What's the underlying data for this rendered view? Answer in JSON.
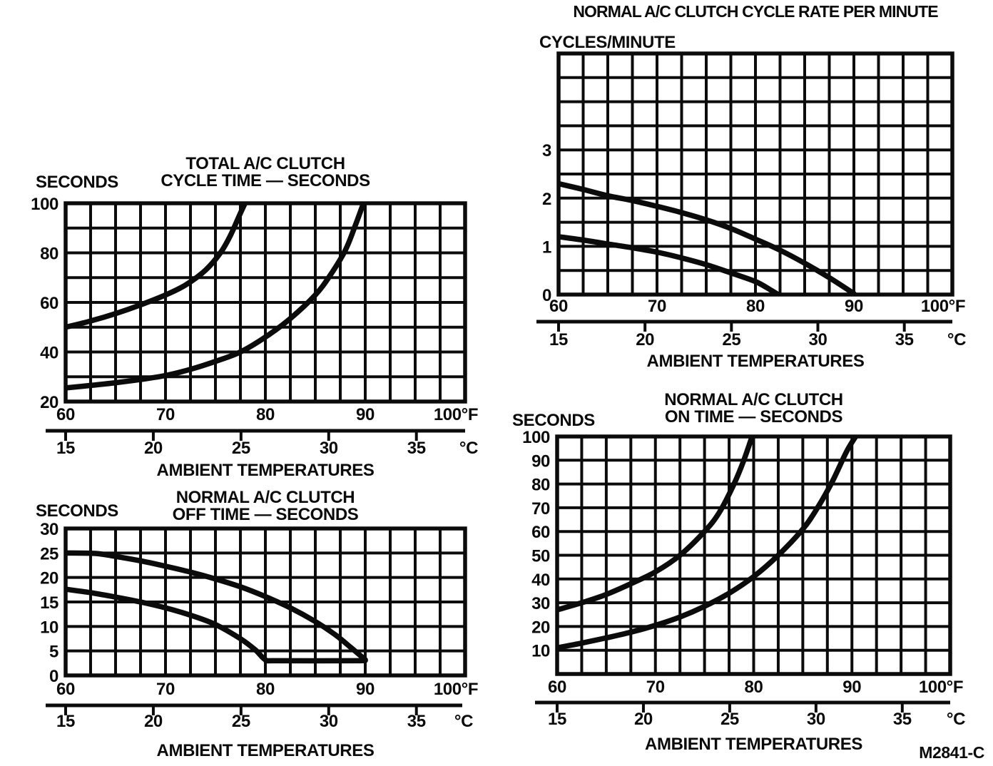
{
  "page": {
    "figure_code": "M2841-C"
  },
  "chart_data": [
    {
      "id": "cycle-time",
      "type": "line",
      "title_lines": [
        "TOTAL A/C CLUTCH",
        "CYCLE TIME — SECONDS"
      ],
      "y_unit_label": "SECONDS",
      "x_axis_label": "AMBIENT TEMPERATURES",
      "x_f": {
        "range": [
          60,
          100
        ],
        "grid_step": 2.5,
        "ticks": [
          {
            "v": 60,
            "label": "60"
          },
          {
            "v": 70,
            "label": "70"
          },
          {
            "v": 80,
            "label": "80"
          },
          {
            "v": 90,
            "label": "90"
          },
          {
            "v": 100,
            "label": "100°F"
          }
        ]
      },
      "c_axis": {
        "values": [
          15,
          20,
          25,
          30,
          35
        ],
        "unit": "°C"
      },
      "y": {
        "range": [
          20,
          100
        ],
        "grid_step": 10,
        "ticks": [
          {
            "v": 20,
            "label": "20"
          },
          {
            "v": 40,
            "label": "40"
          },
          {
            "v": 60,
            "label": "60"
          },
          {
            "v": 80,
            "label": "80"
          },
          {
            "v": 100,
            "label": "100"
          }
        ]
      },
      "series": [
        {
          "name": "upper",
          "points": [
            [
              60,
              50
            ],
            [
              62.5,
              52.5
            ],
            [
              65,
              55.5
            ],
            [
              67.5,
              59
            ],
            [
              70,
              63
            ],
            [
              72,
              67
            ],
            [
              74,
              73
            ],
            [
              75.5,
              80
            ],
            [
              76.5,
              87
            ],
            [
              77.5,
              96
            ],
            [
              78.2,
              102
            ]
          ]
        },
        {
          "name": "lower",
          "points": [
            [
              60,
              25.5
            ],
            [
              62.5,
              26.5
            ],
            [
              65,
              27.6
            ],
            [
              67.5,
              28.9
            ],
            [
              70,
              30.5
            ],
            [
              72.5,
              33
            ],
            [
              75,
              36.2
            ],
            [
              77.5,
              40
            ],
            [
              80,
              46
            ],
            [
              82.5,
              53.5
            ],
            [
              85,
              63
            ],
            [
              86.5,
              71
            ],
            [
              88,
              81
            ],
            [
              89,
              91
            ],
            [
              90,
              102
            ]
          ]
        }
      ]
    },
    {
      "id": "cycle-rate",
      "type": "line",
      "title_lines": [
        "NORMAL A/C CLUTCH CYCLE RATE PER MINUTE"
      ],
      "y_unit_label": "CYCLES/MINUTE",
      "x_axis_label": "AMBIENT TEMPERATURES",
      "x_f": {
        "range": [
          60,
          100
        ],
        "grid_step": 2.5,
        "ticks": [
          {
            "v": 60,
            "label": "60"
          },
          {
            "v": 70,
            "label": "70"
          },
          {
            "v": 80,
            "label": "80"
          },
          {
            "v": 90,
            "label": "90"
          },
          {
            "v": 100,
            "label": "100°F"
          }
        ]
      },
      "c_axis": {
        "values": [
          15,
          20,
          25,
          30,
          35
        ],
        "unit": "°C"
      },
      "y": {
        "range": [
          0,
          5
        ],
        "grid_step": 0.5,
        "ticks": [
          {
            "v": 0,
            "label": "0"
          },
          {
            "v": 1,
            "label": "1"
          },
          {
            "v": 2,
            "label": "2"
          },
          {
            "v": 3,
            "label": "3"
          }
        ]
      },
      "series": [
        {
          "name": "upper",
          "points": [
            [
              60,
              2.3
            ],
            [
              62.5,
              2.18
            ],
            [
              65,
              2.05
            ],
            [
              67.5,
              1.95
            ],
            [
              70,
              1.83
            ],
            [
              72.5,
              1.7
            ],
            [
              75,
              1.55
            ],
            [
              77.5,
              1.37
            ],
            [
              80,
              1.15
            ],
            [
              82.5,
              0.92
            ],
            [
              85,
              0.65
            ],
            [
              87.5,
              0.35
            ],
            [
              90,
              0.02
            ]
          ]
        },
        {
          "name": "lower",
          "points": [
            [
              60,
              1.2
            ],
            [
              62.5,
              1.13
            ],
            [
              65,
              1.05
            ],
            [
              67.5,
              0.97
            ],
            [
              70,
              0.88
            ],
            [
              72.5,
              0.76
            ],
            [
              75,
              0.62
            ],
            [
              77.5,
              0.45
            ],
            [
              80,
              0.27
            ],
            [
              81.5,
              0.1
            ],
            [
              82.3,
              0
            ]
          ]
        }
      ]
    },
    {
      "id": "off-time",
      "type": "line",
      "title_lines": [
        "NORMAL A/C CLUTCH",
        "OFF TIME — SECONDS"
      ],
      "y_unit_label": "SECONDS",
      "x_axis_label": "AMBIENT TEMPERATURES",
      "x_f": {
        "range": [
          60,
          100
        ],
        "grid_step": 2.5,
        "ticks": [
          {
            "v": 60,
            "label": "60"
          },
          {
            "v": 70,
            "label": "70"
          },
          {
            "v": 80,
            "label": "80"
          },
          {
            "v": 90,
            "label": "90"
          },
          {
            "v": 100,
            "label": "100°F"
          }
        ]
      },
      "c_axis": {
        "values": [
          15,
          20,
          25,
          30,
          35
        ],
        "unit": "°C"
      },
      "y": {
        "range": [
          0,
          30
        ],
        "grid_step": 5,
        "ticks": [
          {
            "v": 0,
            "label": "0"
          },
          {
            "v": 5,
            "label": "5"
          },
          {
            "v": 10,
            "label": "10"
          },
          {
            "v": 15,
            "label": "15"
          },
          {
            "v": 20,
            "label": "20"
          },
          {
            "v": 25,
            "label": "25"
          },
          {
            "v": 30,
            "label": "30"
          }
        ]
      },
      "series": [
        {
          "name": "upper",
          "points": [
            [
              60,
              25
            ],
            [
              63,
              24.9
            ],
            [
              65,
              24.3
            ],
            [
              67.5,
              23.4
            ],
            [
              70,
              22.3
            ],
            [
              72.5,
              21.1
            ],
            [
              75,
              19.7
            ],
            [
              77.5,
              18.1
            ],
            [
              80,
              16.1
            ],
            [
              82.5,
              13.8
            ],
            [
              85,
              11
            ],
            [
              87,
              8.3
            ],
            [
              88.5,
              5.8
            ],
            [
              90,
              3.2
            ]
          ]
        },
        {
          "name": "lower",
          "points": [
            [
              60,
              17.6
            ],
            [
              62.5,
              16.9
            ],
            [
              65,
              16
            ],
            [
              67.5,
              15
            ],
            [
              70,
              13.8
            ],
            [
              72.5,
              12.3
            ],
            [
              75,
              10.4
            ],
            [
              77.5,
              7.5
            ],
            [
              79,
              5.2
            ],
            [
              80,
              3.2
            ],
            [
              81,
              3
            ],
            [
              89,
              3
            ],
            [
              90,
              3.1
            ]
          ]
        }
      ]
    },
    {
      "id": "on-time",
      "type": "line",
      "title_lines": [
        "NORMAL A/C CLUTCH",
        "ON TIME — SECONDS"
      ],
      "y_unit_label": "SECONDS",
      "x_axis_label": "AMBIENT TEMPERATURES",
      "x_f": {
        "range": [
          60,
          100
        ],
        "grid_step": 2.5,
        "ticks": [
          {
            "v": 60,
            "label": "60"
          },
          {
            "v": 70,
            "label": "70"
          },
          {
            "v": 80,
            "label": "80"
          },
          {
            "v": 90,
            "label": "90"
          },
          {
            "v": 100,
            "label": "100°F"
          }
        ]
      },
      "c_axis": {
        "values": [
          15,
          20,
          25,
          30,
          35
        ],
        "unit": "°C"
      },
      "y": {
        "range": [
          0,
          100
        ],
        "grid_step": 10,
        "ticks": [
          {
            "v": 10,
            "label": "10"
          },
          {
            "v": 20,
            "label": "20"
          },
          {
            "v": 30,
            "label": "30"
          },
          {
            "v": 40,
            "label": "40"
          },
          {
            "v": 50,
            "label": "50"
          },
          {
            "v": 60,
            "label": "60"
          },
          {
            "v": 70,
            "label": "70"
          },
          {
            "v": 80,
            "label": "80"
          },
          {
            "v": 90,
            "label": "90"
          },
          {
            "v": 100,
            "label": "100"
          }
        ]
      },
      "series": [
        {
          "name": "upper",
          "points": [
            [
              60,
              27
            ],
            [
              62.5,
              30
            ],
            [
              65,
              33.5
            ],
            [
              67.5,
              38
            ],
            [
              70,
              43
            ],
            [
              72.5,
              50
            ],
            [
              75,
              60
            ],
            [
              76.5,
              68
            ],
            [
              78,
              80
            ],
            [
              79,
              90
            ],
            [
              80,
              102
            ]
          ]
        },
        {
          "name": "lower",
          "points": [
            [
              60,
              11
            ],
            [
              62.5,
              13
            ],
            [
              65,
              15.2
            ],
            [
              67.5,
              17.6
            ],
            [
              70,
              20.5
            ],
            [
              72.5,
              24
            ],
            [
              75,
              28.5
            ],
            [
              77.5,
              34
            ],
            [
              80,
              41
            ],
            [
              82.5,
              50
            ],
            [
              85,
              61
            ],
            [
              86.5,
              70
            ],
            [
              88,
              81
            ],
            [
              89.5,
              94
            ],
            [
              90.7,
              102
            ]
          ]
        }
      ]
    }
  ]
}
